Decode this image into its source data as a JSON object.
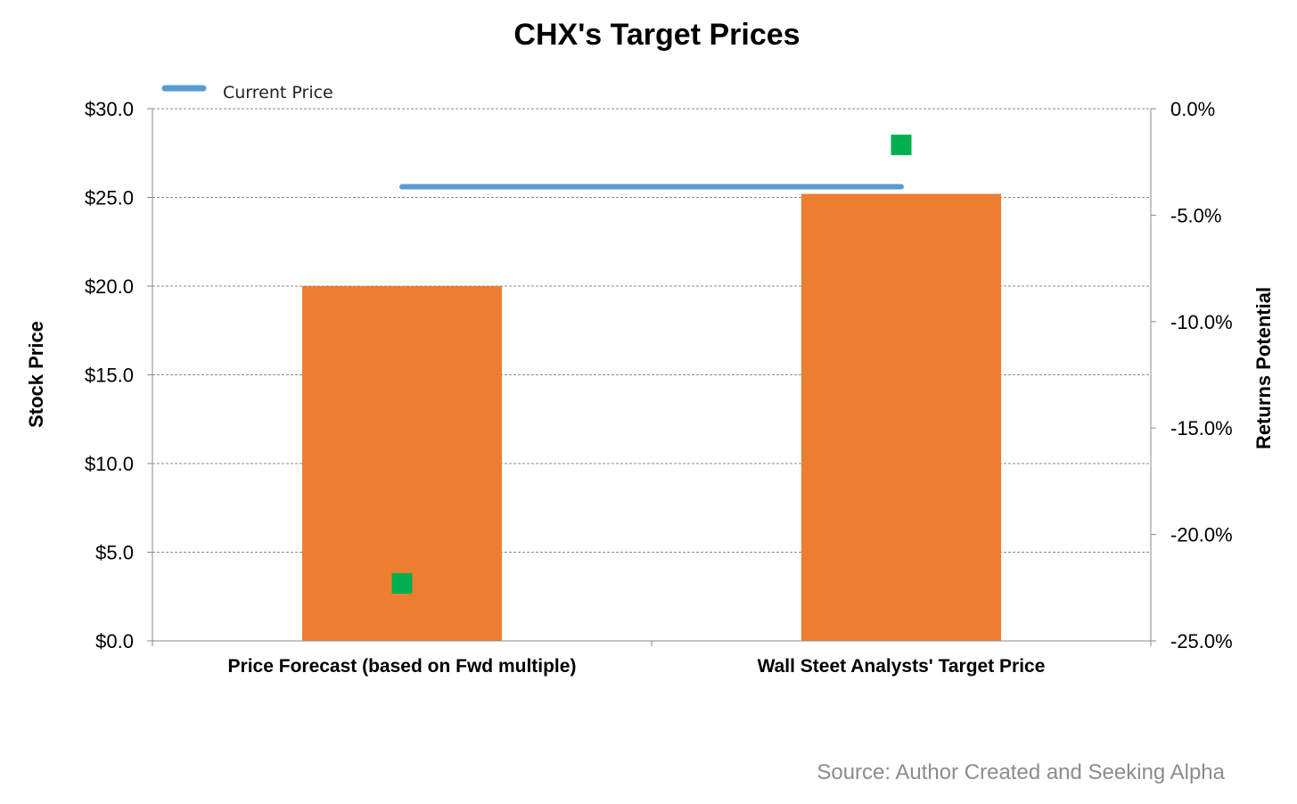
{
  "chart_data": {
    "type": "bar",
    "title": "CHX's Target Prices",
    "ylabel": "Stock Price",
    "y2label": "Returns Potential",
    "ylim": [
      0,
      30
    ],
    "y2lim": [
      -25,
      0
    ],
    "yticks": [
      "$0.0",
      "$5.0",
      "$10.0",
      "$15.0",
      "$20.0",
      "$25.0",
      "$30.0"
    ],
    "y2ticks": [
      "-25.0%",
      "-20.0%",
      "-15.0%",
      "-10.0%",
      "-5.0%",
      "0.0%"
    ],
    "categories": [
      "Price Forecast (based on Fwd multiple)",
      "Wall Steet Analysts' Target Price"
    ],
    "bars": {
      "values": [
        20.0,
        25.2
      ],
      "color": "#ED7D31"
    },
    "current_price": {
      "name": "Current Price",
      "value": 25.6,
      "color": "#5B9BD5"
    },
    "returns_potential": {
      "values": [
        -22.3,
        -1.7
      ],
      "color": "#00B050"
    },
    "grid": true,
    "legend_position": "top-left",
    "source": "Source: Author Created and Seeking Alpha"
  }
}
